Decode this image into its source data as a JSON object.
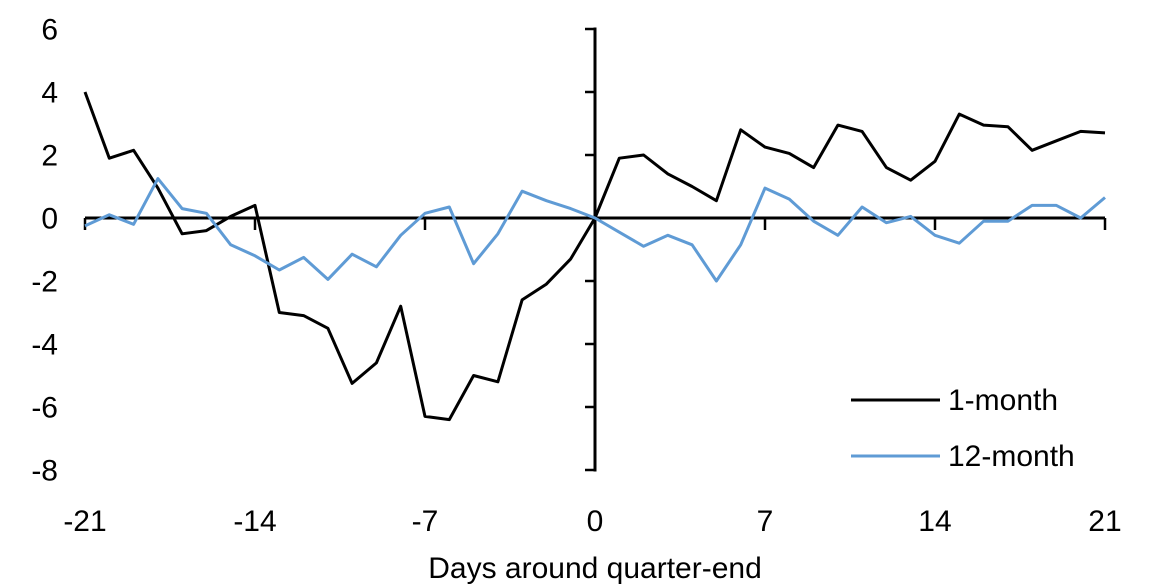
{
  "chart_data": {
    "type": "line",
    "title": "",
    "xlabel": "Days around quarter-end",
    "ylabel": "",
    "xlim": [
      -21,
      21
    ],
    "ylim": [
      -8,
      6
    ],
    "x_ticks": [
      -21,
      -14,
      -7,
      0,
      7,
      14,
      21
    ],
    "y_ticks": [
      -8,
      -6,
      -4,
      -2,
      0,
      2,
      4,
      6
    ],
    "grid": false,
    "axes_cross_at_zero": true,
    "legend_position": "lower-right",
    "x": [
      -21,
      -20,
      -19,
      -18,
      -17,
      -16,
      -15,
      -14,
      -13,
      -12,
      -11,
      -10,
      -9,
      -8,
      -7,
      -6,
      -5,
      -4,
      -3,
      -2,
      -1,
      0,
      1,
      2,
      3,
      4,
      5,
      6,
      7,
      8,
      9,
      10,
      11,
      12,
      13,
      14,
      15,
      16,
      17,
      18,
      19,
      20,
      21
    ],
    "series": [
      {
        "name": "1-month",
        "color": "#000000",
        "values": [
          4.0,
          1.9,
          2.15,
          0.95,
          -0.5,
          -0.4,
          0.05,
          0.4,
          -3.0,
          -3.1,
          -3.5,
          -5.25,
          -4.6,
          -2.8,
          -6.3,
          -6.4,
          -5.0,
          -5.2,
          -2.6,
          -2.1,
          -1.3,
          0.0,
          1.9,
          2.0,
          1.4,
          1.0,
          0.55,
          2.8,
          2.25,
          2.05,
          1.6,
          2.95,
          2.75,
          1.6,
          1.2,
          1.8,
          3.3,
          2.95,
          2.9,
          2.15,
          2.45,
          2.75,
          2.7
        ]
      },
      {
        "name": "12-month",
        "color": "#5F9BD5",
        "values": [
          -0.25,
          0.1,
          -0.2,
          1.25,
          0.3,
          0.15,
          -0.85,
          -1.2,
          -1.65,
          -1.25,
          -1.95,
          -1.15,
          -1.55,
          -0.55,
          0.15,
          0.35,
          -1.45,
          -0.5,
          0.85,
          0.55,
          0.3,
          0.0,
          -0.45,
          -0.9,
          -0.55,
          -0.85,
          -2.0,
          -0.85,
          0.95,
          0.6,
          -0.1,
          -0.55,
          0.35,
          -0.15,
          0.05,
          -0.55,
          -0.8,
          -0.1,
          -0.1,
          0.4,
          0.4,
          0.0,
          0.65
        ]
      }
    ]
  }
}
